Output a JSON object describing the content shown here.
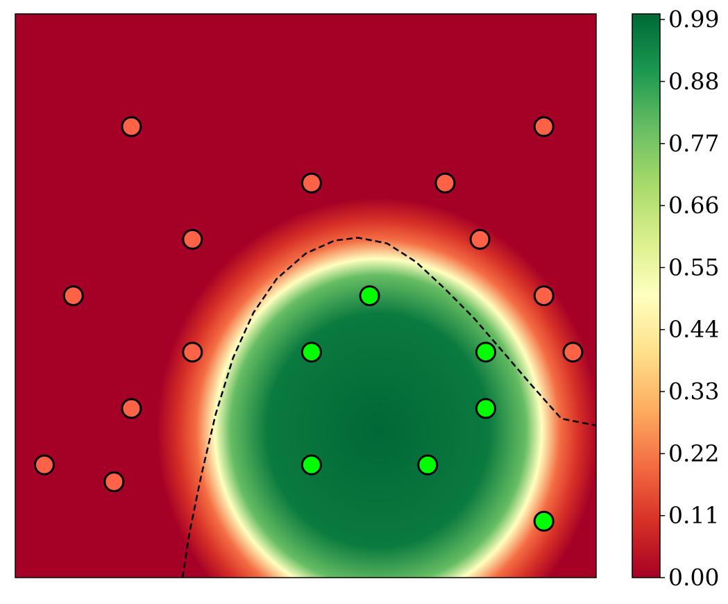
{
  "chart_data": {
    "type": "scatter",
    "title": "",
    "xlabel": "",
    "ylabel": "",
    "xlim": [
      0,
      10
    ],
    "ylim": [
      0,
      10
    ],
    "axis_ticks_visible": false,
    "grid": false,
    "background": "probability-heatmap",
    "decision_boundary": {
      "style": "dashed",
      "color": "#000000",
      "level": 0.5,
      "points": [
        [
          2.88,
          0.0
        ],
        [
          3.0,
          0.8
        ],
        [
          3.2,
          1.8
        ],
        [
          3.45,
          2.9
        ],
        [
          3.75,
          3.9
        ],
        [
          4.1,
          4.7
        ],
        [
          4.5,
          5.3
        ],
        [
          5.0,
          5.75
        ],
        [
          5.5,
          5.98
        ],
        [
          5.9,
          6.03
        ],
        [
          6.4,
          5.93
        ],
        [
          6.9,
          5.6
        ],
        [
          7.4,
          5.12
        ],
        [
          7.9,
          4.6
        ],
        [
          8.4,
          4.0
        ],
        [
          8.9,
          3.4
        ],
        [
          9.4,
          2.82
        ],
        [
          10.0,
          2.7
        ]
      ]
    },
    "series": [
      {
        "color": "#ff6347",
        "points": [
          [
            2.0,
            8.0
          ],
          [
            9.1,
            8.0
          ],
          [
            5.1,
            7.0
          ],
          [
            7.4,
            7.0
          ],
          [
            3.05,
            6.0
          ],
          [
            8.0,
            6.0
          ],
          [
            1.0,
            5.0
          ],
          [
            9.1,
            5.0
          ],
          [
            3.05,
            4.0
          ],
          [
            9.6,
            4.0
          ],
          [
            2.0,
            3.0
          ],
          [
            0.5,
            2.0
          ],
          [
            1.7,
            1.7
          ]
        ]
      },
      {
        "color": "#00ff00",
        "points": [
          [
            6.1,
            5.0
          ],
          [
            5.1,
            4.0
          ],
          [
            8.1,
            4.0
          ],
          [
            8.1,
            3.0
          ],
          [
            5.1,
            2.0
          ],
          [
            7.1,
            2.0
          ],
          [
            9.1,
            1.0
          ]
        ]
      }
    ],
    "colorbar": {
      "colormap": "RdYlGn",
      "min": 0.0,
      "max": 1.0,
      "tick_values": [
        0.0,
        0.11,
        0.22,
        0.33,
        0.44,
        0.55,
        0.66,
        0.77,
        0.88,
        0.99
      ],
      "tick_labels": [
        "0.00",
        "0.11",
        "0.22",
        "0.33",
        "0.44",
        "0.55",
        "0.66",
        "0.77",
        "0.88",
        "0.99"
      ],
      "stops": [
        "#a50026",
        "#d73027",
        "#f46d43",
        "#fdae61",
        "#fee08b",
        "#ffffbf",
        "#d9ef8b",
        "#a6d96a",
        "#66bd63",
        "#1a9850",
        "#006837"
      ]
    }
  }
}
